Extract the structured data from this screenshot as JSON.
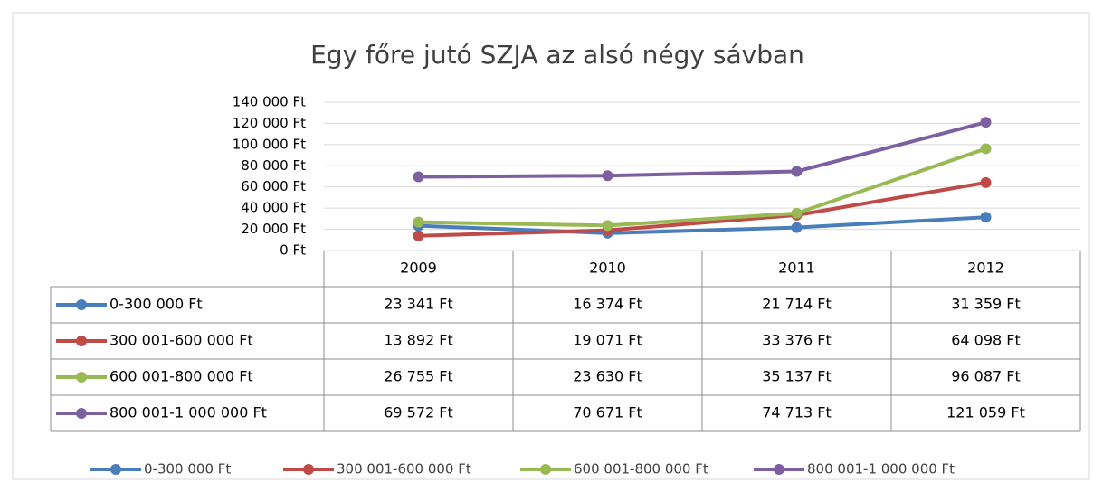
{
  "chart_data": {
    "type": "line",
    "title": "Egy főre jutó SZJA az alsó négy sávban",
    "categories": [
      "2009",
      "2010",
      "2011",
      "2012"
    ],
    "ylim": [
      0,
      140000
    ],
    "yticks": [
      {
        "value": 0,
        "label": "0 Ft"
      },
      {
        "value": 20000,
        "label": "20 000 Ft"
      },
      {
        "value": 40000,
        "label": "40 000 Ft"
      },
      {
        "value": 60000,
        "label": "60 000 Ft"
      },
      {
        "value": 80000,
        "label": "80 000 Ft"
      },
      {
        "value": 100000,
        "label": "100 000 Ft"
      },
      {
        "value": 120000,
        "label": "120 000 Ft"
      },
      {
        "value": 140000,
        "label": "140 000 Ft"
      }
    ],
    "grid": true,
    "legend": "bottom",
    "series": [
      {
        "name": "0-300 000 Ft",
        "color": "#4a7ebb",
        "values": [
          23341,
          16374,
          21714,
          31359
        ],
        "value_labels": [
          "23 341 Ft",
          "16 374 Ft",
          "21 714 Ft",
          "31 359 Ft"
        ]
      },
      {
        "name": "300 001-600 000 Ft",
        "color": "#be4b48",
        "values": [
          13892,
          19071,
          33376,
          64098
        ],
        "value_labels": [
          "13 892 Ft",
          "19 071 Ft",
          "33 376 Ft",
          "64 098 Ft"
        ]
      },
      {
        "name": "600 001-800 000 Ft",
        "color": "#98b954",
        "values": [
          26755,
          23630,
          35137,
          96087
        ],
        "value_labels": [
          "26 755 Ft",
          "23 630 Ft",
          "35 137 Ft",
          "96 087 Ft"
        ]
      },
      {
        "name": "800 001-1 000 000 Ft",
        "color": "#7d60a0",
        "values": [
          69572,
          70671,
          74713,
          121059
        ],
        "value_labels": [
          "69 572 Ft",
          "70 671 Ft",
          "74 713 Ft",
          "121 059 Ft"
        ]
      }
    ]
  }
}
